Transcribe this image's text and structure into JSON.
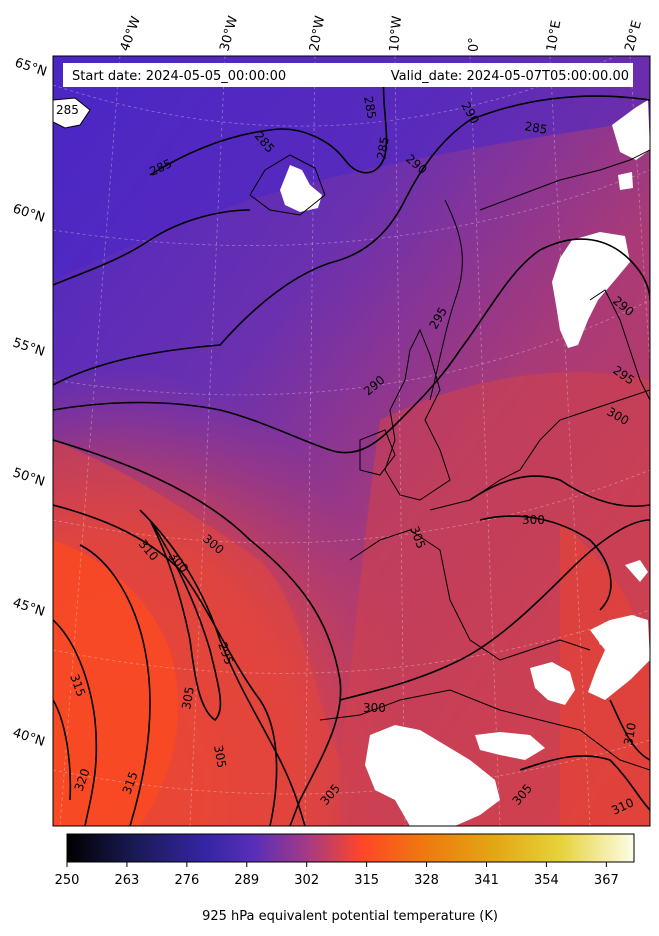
{
  "header": {
    "start_date": "Start date: 2024-05-05_00:00:00",
    "valid_date": "Valid_date: 2024-05-07T05:00:00.00"
  },
  "map": {
    "lon_labels": [
      "40°W",
      "30°W",
      "20°W",
      "10°W",
      "0°",
      "10°E",
      "20°E"
    ],
    "lat_labels": [
      "65°N",
      "60°N",
      "55°N",
      "50°N",
      "45°N",
      "40°N"
    ],
    "contour_labels": [
      "285",
      "285",
      "285",
      "285",
      "285",
      "285",
      "290",
      "290",
      "290",
      "290",
      "295",
      "295",
      "295",
      "300",
      "300",
      "300",
      "300",
      "300",
      "305",
      "305",
      "305",
      "305",
      "305",
      "310",
      "310",
      "310",
      "315",
      "315",
      "320"
    ],
    "colors": {
      "cold": "#5028c0",
      "mid": "#7a35a8",
      "warm": "#c53e62",
      "hot": "#fb4a25",
      "land_mask": "#ffffff"
    }
  },
  "colorbar": {
    "ticks": [
      "250",
      "263",
      "276",
      "289",
      "302",
      "315",
      "328",
      "341",
      "354",
      "367"
    ],
    "min": 250,
    "max": 373,
    "label": "925 hPa equivalent potential temperature (K)",
    "colormap": "CMRmap"
  }
}
